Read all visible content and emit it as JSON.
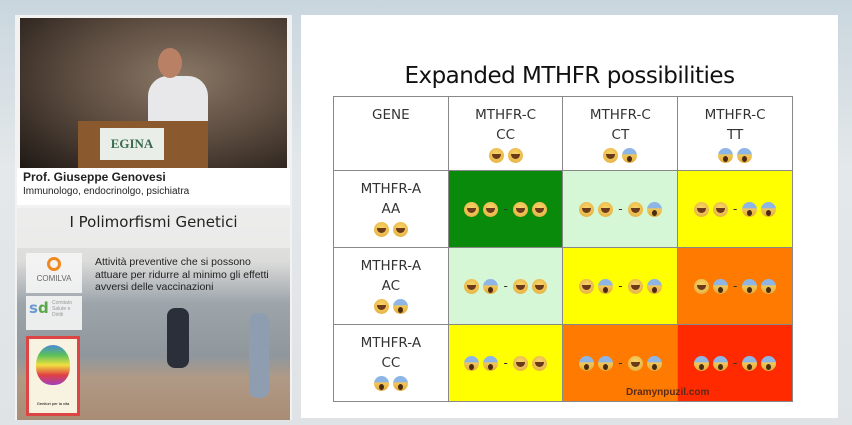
{
  "speaker": {
    "name": "Prof. Giuseppe Genovesi",
    "role": "Immunologo, endocrinolgo, psichiatra",
    "podium_sign": "EGINA"
  },
  "panel": {
    "title": "I Polimorfismi Genetici",
    "description": "Attività preventive che si possono attuare per ridurre al minimo gli effetti avversi delle vaccinazioni",
    "logos": [
      "COMILVA",
      "Comitato Salute e Diritti",
      "Genitori per la vita"
    ]
  },
  "slide": {
    "title": "Expanded MTHFR possibilities",
    "corner": "GENE",
    "columns": [
      {
        "label": [
          "MTHFR-C",
          "CC"
        ],
        "emoji": [
          "h",
          "h"
        ]
      },
      {
        "label": [
          "MTHFR-C",
          "CT"
        ],
        "emoji": [
          "h",
          "s"
        ]
      },
      {
        "label": [
          "MTHFR-C",
          "TT"
        ],
        "emoji": [
          "s",
          "s"
        ]
      }
    ],
    "rows": [
      {
        "label": [
          "MTHFR-A",
          "AA"
        ],
        "emoji": [
          "h",
          "h"
        ],
        "cells": [
          {
            "color": "#0a8a0a",
            "emoji": [
              "h",
              "h",
              "h",
              "h"
            ]
          },
          {
            "color": "#d6f7d6",
            "emoji": [
              "h",
              "h",
              "h",
              "s"
            ]
          },
          {
            "color": "#ffff00",
            "emoji": [
              "h",
              "h",
              "s",
              "s"
            ]
          }
        ]
      },
      {
        "label": [
          "MTHFR-A",
          "AC"
        ],
        "emoji": [
          "h",
          "s"
        ],
        "cells": [
          {
            "color": "#d6f7d6",
            "emoji": [
              "h",
              "s",
              "h",
              "h"
            ]
          },
          {
            "color": "#ffff00",
            "emoji": [
              "h",
              "s",
              "h",
              "s"
            ]
          },
          {
            "color": "#ff7a00",
            "emoji": [
              "h",
              "s",
              "s",
              "s"
            ]
          }
        ]
      },
      {
        "label": [
          "MTHFR-A",
          "CC"
        ],
        "emoji": [
          "s",
          "s"
        ],
        "cells": [
          {
            "color": "#ffff00",
            "emoji": [
              "s",
              "s",
              "h",
              "h"
            ]
          },
          {
            "color": "#ff7a00",
            "emoji": [
              "s",
              "s",
              "h",
              "s"
            ]
          },
          {
            "color": "#ff2a00",
            "emoji": [
              "s",
              "s",
              "s",
              "s"
            ]
          }
        ]
      }
    ],
    "watermark": "Dramynpuzil.com"
  }
}
